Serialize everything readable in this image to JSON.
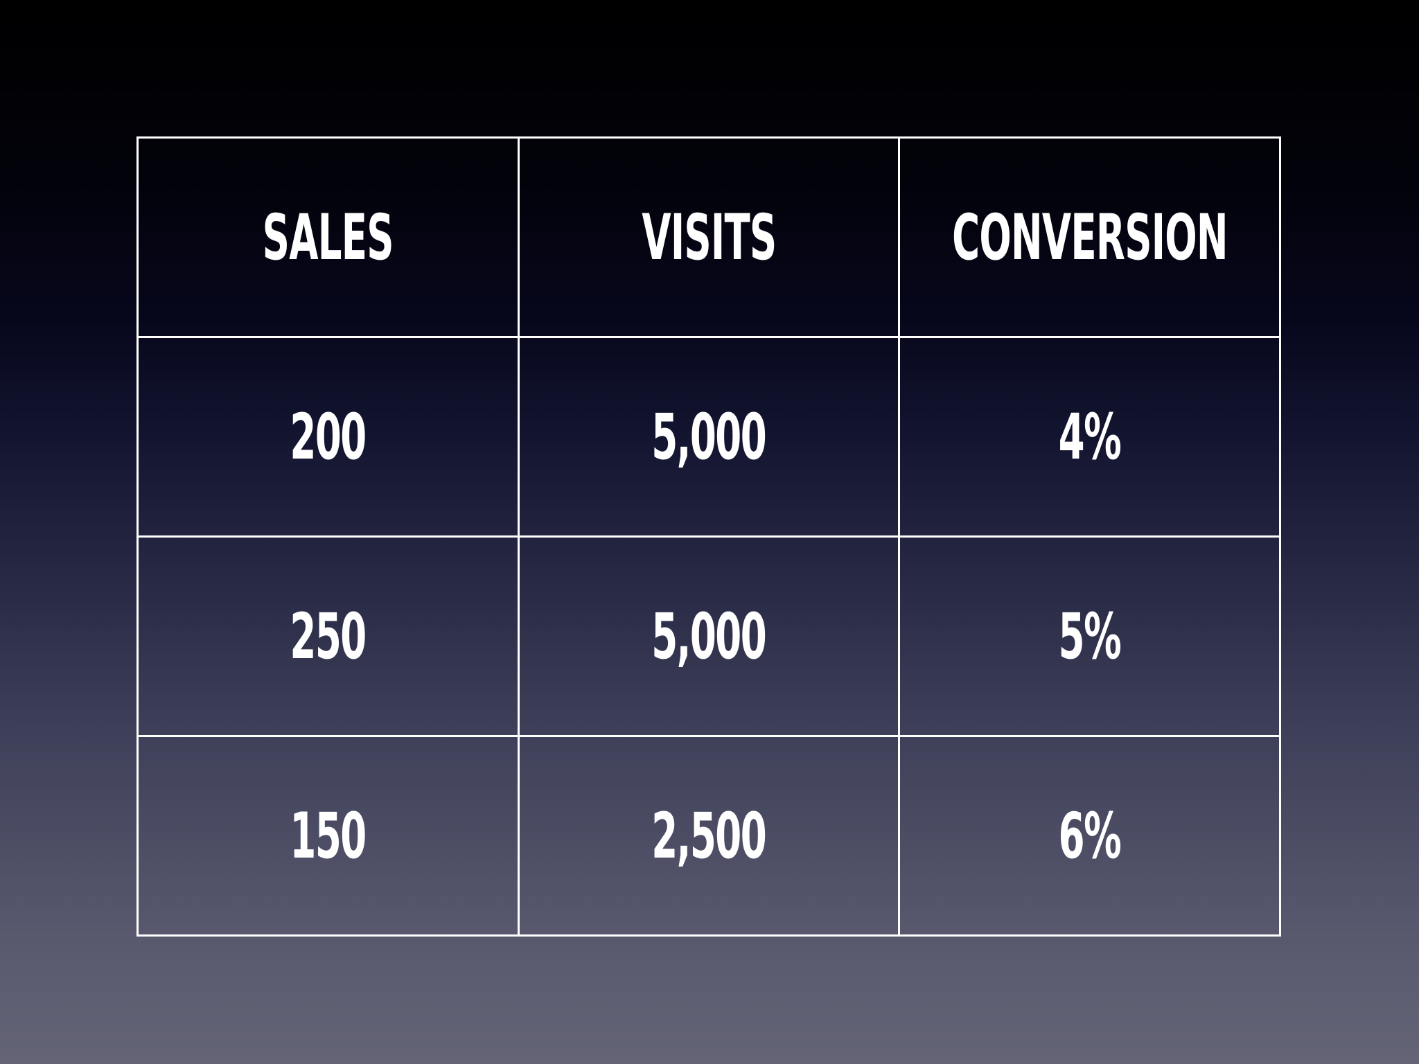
{
  "chart_data": {
    "type": "table",
    "columns": [
      "SALES",
      "VISITS",
      "CONVERSION"
    ],
    "rows": [
      [
        "200",
        "5,000",
        "4%"
      ],
      [
        "250",
        "5,000",
        "5%"
      ],
      [
        "150",
        "2,500",
        "6%"
      ]
    ]
  },
  "colors": {
    "border": "#ffffff",
    "text": "#ffffff",
    "background_top": "#000000",
    "background_bottom": "#646476"
  }
}
